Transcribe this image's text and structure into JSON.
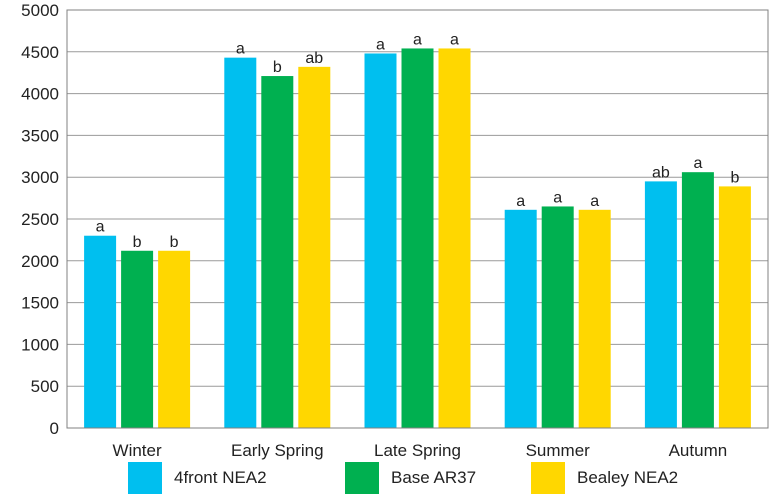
{
  "chart_data": {
    "type": "bar",
    "categories": [
      "Winter",
      "Early Spring",
      "Late Spring",
      "Summer",
      "Autumn"
    ],
    "series": [
      {
        "name": "4front NEA2",
        "color": "#00bfef",
        "values": [
          2300,
          4430,
          4480,
          2610,
          2950
        ],
        "labels": [
          "a",
          "a",
          "a",
          "a",
          "ab"
        ]
      },
      {
        "name": "Base AR37",
        "color": "#00b050",
        "values": [
          2120,
          4210,
          4540,
          2650,
          3060
        ],
        "labels": [
          "b",
          "b",
          "a",
          "a",
          "a"
        ]
      },
      {
        "name": "Bealey NEA2",
        "color": "#ffd700",
        "values": [
          2120,
          4320,
          4540,
          2610,
          2890
        ],
        "labels": [
          "b",
          "ab",
          "a",
          "a",
          "b"
        ]
      }
    ],
    "yticks": [
      "0",
      "500",
      "1000",
      "1500",
      "2000",
      "2500",
      "3000",
      "3500",
      "4000",
      "4500",
      "5000"
    ],
    "ylim": [
      0,
      5000
    ],
    "grid": true,
    "legend_position": "bottom",
    "title": "",
    "xlabel": "",
    "ylabel": ""
  }
}
